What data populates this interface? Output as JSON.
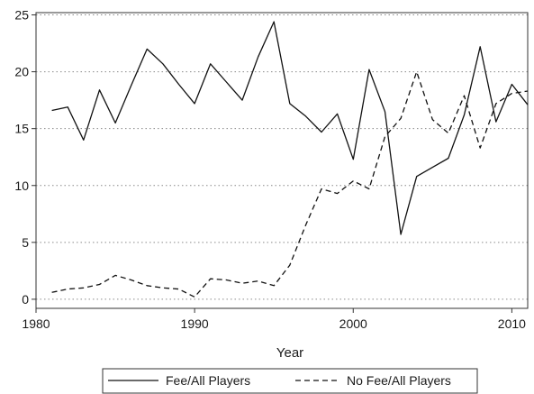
{
  "chart_data": {
    "type": "line",
    "title": "",
    "xlabel": "Year",
    "ylabel": "",
    "xlim": [
      1980,
      2011
    ],
    "ylim": [
      -0.8,
      25.2
    ],
    "xticks": [
      "1980",
      "1990",
      "2000",
      "2010"
    ],
    "yticks": [
      "0",
      "5",
      "10",
      "15",
      "20",
      "25"
    ],
    "grid": "horizontal dotted",
    "legend_position": "bottom",
    "x": [
      1981,
      1982,
      1983,
      1984,
      1985,
      1986,
      1987,
      1988,
      1989,
      1990,
      1991,
      1992,
      1993,
      1994,
      1995,
      1996,
      1997,
      1998,
      1999,
      2000,
      2001,
      2002,
      2003,
      2004,
      2005,
      2006,
      2007,
      2008,
      2009,
      2010,
      2011
    ],
    "series": [
      {
        "name": "Fee/All Players",
        "dash": "solid",
        "values": [
          16.6,
          16.9,
          14.0,
          18.4,
          15.5,
          18.8,
          22.0,
          20.7,
          18.9,
          17.2,
          20.7,
          19.1,
          17.5,
          21.3,
          24.4,
          17.2,
          16.1,
          14.7,
          16.3,
          12.3,
          20.2,
          16.5,
          5.7,
          10.8,
          11.6,
          12.4,
          16.2,
          22.2,
          15.6,
          18.9,
          17.1
        ]
      },
      {
        "name": "No Fee/All Players",
        "dash": "dashed",
        "values": [
          0.6,
          0.9,
          1.0,
          1.3,
          2.1,
          1.7,
          1.2,
          1.0,
          0.9,
          0.2,
          1.8,
          1.7,
          1.4,
          1.6,
          1.2,
          3.0,
          6.5,
          9.7,
          9.3,
          10.4,
          9.7,
          14.3,
          15.9,
          20.0,
          15.8,
          14.6,
          17.9,
          13.3,
          17.2,
          18.1,
          18.3
        ]
      }
    ]
  }
}
